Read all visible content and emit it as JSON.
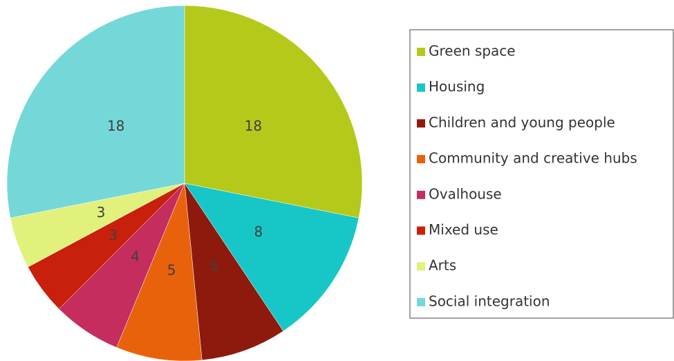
{
  "chart_data": {
    "type": "pie",
    "categories": [
      "Green space",
      "Housing",
      "Children and young people",
      "Community and creative hubs",
      "Ovalhouse",
      "Mixed use",
      "Arts",
      "Social integration"
    ],
    "values": [
      18,
      8,
      5,
      5,
      4,
      3,
      3,
      18
    ],
    "colors": [
      "#b5c91b",
      "#17c7c7",
      "#8e1a0e",
      "#e8620c",
      "#c42d5e",
      "#c8200c",
      "#e2f07c",
      "#74d8d8"
    ],
    "legend": "right"
  }
}
